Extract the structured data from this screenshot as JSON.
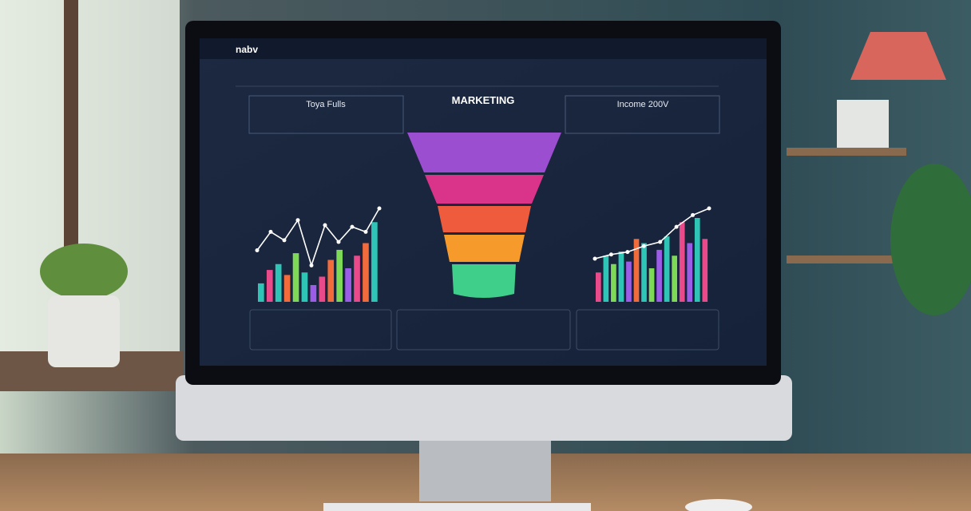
{
  "screen": {
    "brand": "nabv",
    "left_card": "Toya Fulls",
    "center_title": "MARKETING",
    "right_card": "Income 200V"
  },
  "left_chart": {
    "bars": [
      22,
      38,
      45,
      32,
      58,
      35,
      20,
      30,
      50,
      62,
      40,
      55,
      70,
      95
    ],
    "colors": [
      "#2ec4b6",
      "#e84a8a",
      "#2ec4b6",
      "#f26b3a",
      "#7ed957",
      "#2ec4b6",
      "#9b5de5",
      "#e84a8a",
      "#f26b3a",
      "#7ed957",
      "#9b5de5",
      "#e84a8a",
      "#f26b3a",
      "#2ec4b6"
    ],
    "line": [
      50,
      72,
      62,
      86,
      32,
      80,
      60,
      78,
      72,
      100
    ]
  },
  "right_chart": {
    "bars": [
      35,
      55,
      45,
      60,
      48,
      75,
      70,
      40,
      62,
      78,
      55,
      95,
      70,
      100,
      75
    ],
    "colors": [
      "#e84a8a",
      "#2ec4b6",
      "#7ed957",
      "#2ec4b6",
      "#9b5de5",
      "#f26b3a",
      "#2ec4b6",
      "#7ed957",
      "#9b5de5",
      "#2ec4b6",
      "#7ed957",
      "#e84a8a",
      "#9b5de5",
      "#2ec4b6",
      "#e84a8a"
    ],
    "line": [
      40,
      45,
      48,
      55,
      60,
      78,
      92,
      100
    ]
  }
}
